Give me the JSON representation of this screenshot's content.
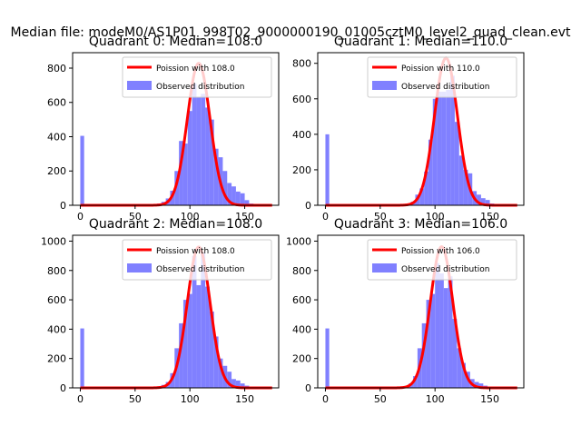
{
  "suptitle": "Median file: modeM0/AS1P01_998T02_9000000190_01005cztM0_level2_quad_clean.evt",
  "colors": {
    "model": "#ff0000",
    "hist": "#8080ff",
    "axes": "#000000",
    "legend_border": "#cccccc"
  },
  "chart_data": [
    {
      "type": "bar",
      "title": "Quadrant 0: Median=108.0",
      "median": 108,
      "xlim": [
        -7,
        181
      ],
      "ylim": [
        0,
        890
      ],
      "xticks": [
        0,
        50,
        100,
        150
      ],
      "yticks": [
        0,
        200,
        400,
        600,
        800
      ],
      "legend_position": "top-right",
      "series": [
        {
          "name": "Poission with 108.0",
          "kind": "line",
          "peak": 828,
          "sigma": 10.4
        },
        {
          "name": "Observed distribution",
          "kind": "histogram",
          "bins": [
            {
              "x0": 0,
              "x1": 3.5,
              "y": 405
            },
            {
              "x0": 70,
              "x1": 74,
              "y": 10
            },
            {
              "x0": 74,
              "x1": 78,
              "y": 20
            },
            {
              "x0": 78,
              "x1": 82,
              "y": 40
            },
            {
              "x0": 82,
              "x1": 86,
              "y": 85
            },
            {
              "x0": 86,
              "x1": 90,
              "y": 200
            },
            {
              "x0": 90,
              "x1": 94,
              "y": 375
            },
            {
              "x0": 94,
              "x1": 98,
              "y": 360
            },
            {
              "x0": 98,
              "x1": 102,
              "y": 550
            },
            {
              "x0": 102,
              "x1": 106,
              "y": 710
            },
            {
              "x0": 106,
              "x1": 110,
              "y": 630
            },
            {
              "x0": 110,
              "x1": 114,
              "y": 650
            },
            {
              "x0": 114,
              "x1": 118,
              "y": 570
            },
            {
              "x0": 118,
              "x1": 122,
              "y": 500
            },
            {
              "x0": 122,
              "x1": 126,
              "y": 330
            },
            {
              "x0": 126,
              "x1": 130,
              "y": 280
            },
            {
              "x0": 130,
              "x1": 134,
              "y": 200
            },
            {
              "x0": 134,
              "x1": 138,
              "y": 130
            },
            {
              "x0": 138,
              "x1": 142,
              "y": 110
            },
            {
              "x0": 142,
              "x1": 146,
              "y": 80
            },
            {
              "x0": 146,
              "x1": 150,
              "y": 70
            },
            {
              "x0": 150,
              "x1": 154,
              "y": 30
            },
            {
              "x0": 154,
              "x1": 158,
              "y": 10
            }
          ]
        }
      ]
    },
    {
      "type": "bar",
      "title": "Quadrant 1: Median=110.0",
      "median": 110,
      "xlim": [
        -7,
        181
      ],
      "ylim": [
        0,
        860
      ],
      "xticks": [
        0,
        50,
        100,
        150
      ],
      "yticks": [
        0,
        200,
        400,
        600,
        800
      ],
      "legend_position": "top-right",
      "series": [
        {
          "name": "Poission with 110.0",
          "kind": "line",
          "peak": 830,
          "sigma": 10.5
        },
        {
          "name": "Observed distribution",
          "kind": "histogram",
          "bins": [
            {
              "x0": 0,
              "x1": 3.5,
              "y": 400
            },
            {
              "x0": 74,
              "x1": 78,
              "y": 10
            },
            {
              "x0": 78,
              "x1": 82,
              "y": 20
            },
            {
              "x0": 82,
              "x1": 86,
              "y": 60
            },
            {
              "x0": 86,
              "x1": 90,
              "y": 95
            },
            {
              "x0": 90,
              "x1": 94,
              "y": 190
            },
            {
              "x0": 94,
              "x1": 98,
              "y": 370
            },
            {
              "x0": 98,
              "x1": 102,
              "y": 600
            },
            {
              "x0": 102,
              "x1": 106,
              "y": 640
            },
            {
              "x0": 106,
              "x1": 110,
              "y": 640
            },
            {
              "x0": 110,
              "x1": 114,
              "y": 650
            },
            {
              "x0": 114,
              "x1": 118,
              "y": 730
            },
            {
              "x0": 118,
              "x1": 122,
              "y": 470
            },
            {
              "x0": 122,
              "x1": 126,
              "y": 280
            },
            {
              "x0": 126,
              "x1": 130,
              "y": 200
            },
            {
              "x0": 130,
              "x1": 134,
              "y": 180
            },
            {
              "x0": 134,
              "x1": 138,
              "y": 80
            },
            {
              "x0": 138,
              "x1": 142,
              "y": 60
            },
            {
              "x0": 142,
              "x1": 146,
              "y": 40
            },
            {
              "x0": 146,
              "x1": 150,
              "y": 30
            },
            {
              "x0": 150,
              "x1": 154,
              "y": 10
            },
            {
              "x0": 154,
              "x1": 158,
              "y": 5
            }
          ]
        }
      ]
    },
    {
      "type": "bar",
      "title": "Quadrant 2: Median=108.0",
      "median": 108,
      "xlim": [
        -7,
        181
      ],
      "ylim": [
        0,
        1040
      ],
      "xticks": [
        0,
        50,
        100,
        150
      ],
      "yticks": [
        0,
        200,
        400,
        600,
        800,
        1000
      ],
      "legend_position": "top-right",
      "series": [
        {
          "name": "Poission with 108.0",
          "kind": "line",
          "peak": 960,
          "sigma": 10.4
        },
        {
          "name": "Observed distribution",
          "kind": "histogram",
          "bins": [
            {
              "x0": 0,
              "x1": 3.5,
              "y": 405
            },
            {
              "x0": 70,
              "x1": 74,
              "y": 10
            },
            {
              "x0": 74,
              "x1": 78,
              "y": 20
            },
            {
              "x0": 78,
              "x1": 82,
              "y": 40
            },
            {
              "x0": 82,
              "x1": 86,
              "y": 100
            },
            {
              "x0": 86,
              "x1": 90,
              "y": 270
            },
            {
              "x0": 90,
              "x1": 94,
              "y": 440
            },
            {
              "x0": 94,
              "x1": 98,
              "y": 600
            },
            {
              "x0": 98,
              "x1": 102,
              "y": 640
            },
            {
              "x0": 102,
              "x1": 106,
              "y": 900
            },
            {
              "x0": 106,
              "x1": 110,
              "y": 700
            },
            {
              "x0": 110,
              "x1": 114,
              "y": 920
            },
            {
              "x0": 114,
              "x1": 118,
              "y": 690
            },
            {
              "x0": 118,
              "x1": 122,
              "y": 520
            },
            {
              "x0": 122,
              "x1": 126,
              "y": 350
            },
            {
              "x0": 126,
              "x1": 130,
              "y": 200
            },
            {
              "x0": 130,
              "x1": 134,
              "y": 150
            },
            {
              "x0": 134,
              "x1": 138,
              "y": 110
            },
            {
              "x0": 138,
              "x1": 142,
              "y": 60
            },
            {
              "x0": 142,
              "x1": 146,
              "y": 50
            },
            {
              "x0": 146,
              "x1": 150,
              "y": 30
            },
            {
              "x0": 150,
              "x1": 154,
              "y": 15
            }
          ]
        }
      ]
    },
    {
      "type": "bar",
      "title": "Quadrant 3: Median=106.0",
      "median": 106,
      "xlim": [
        -7,
        181
      ],
      "ylim": [
        0,
        1040
      ],
      "xticks": [
        0,
        50,
        100,
        150
      ],
      "yticks": [
        0,
        200,
        400,
        600,
        800,
        1000
      ],
      "legend_position": "top-right",
      "series": [
        {
          "name": "Poission with 106.0",
          "kind": "line",
          "peak": 962,
          "sigma": 10.3
        },
        {
          "name": "Observed distribution",
          "kind": "histogram",
          "bins": [
            {
              "x0": 0,
              "x1": 3.5,
              "y": 405
            },
            {
              "x0": 72,
              "x1": 76,
              "y": 10
            },
            {
              "x0": 76,
              "x1": 80,
              "y": 30
            },
            {
              "x0": 80,
              "x1": 84,
              "y": 80
            },
            {
              "x0": 84,
              "x1": 88,
              "y": 270
            },
            {
              "x0": 88,
              "x1": 92,
              "y": 440
            },
            {
              "x0": 92,
              "x1": 96,
              "y": 600
            },
            {
              "x0": 96,
              "x1": 100,
              "y": 640
            },
            {
              "x0": 100,
              "x1": 104,
              "y": 850
            },
            {
              "x0": 104,
              "x1": 108,
              "y": 780
            },
            {
              "x0": 108,
              "x1": 112,
              "y": 680
            },
            {
              "x0": 112,
              "x1": 116,
              "y": 760
            },
            {
              "x0": 116,
              "x1": 120,
              "y": 470
            },
            {
              "x0": 120,
              "x1": 124,
              "y": 270
            },
            {
              "x0": 124,
              "x1": 128,
              "y": 170
            },
            {
              "x0": 128,
              "x1": 132,
              "y": 110
            },
            {
              "x0": 132,
              "x1": 136,
              "y": 60
            },
            {
              "x0": 136,
              "x1": 140,
              "y": 40
            },
            {
              "x0": 140,
              "x1": 144,
              "y": 30
            },
            {
              "x0": 144,
              "x1": 148,
              "y": 15
            }
          ]
        }
      ]
    }
  ]
}
